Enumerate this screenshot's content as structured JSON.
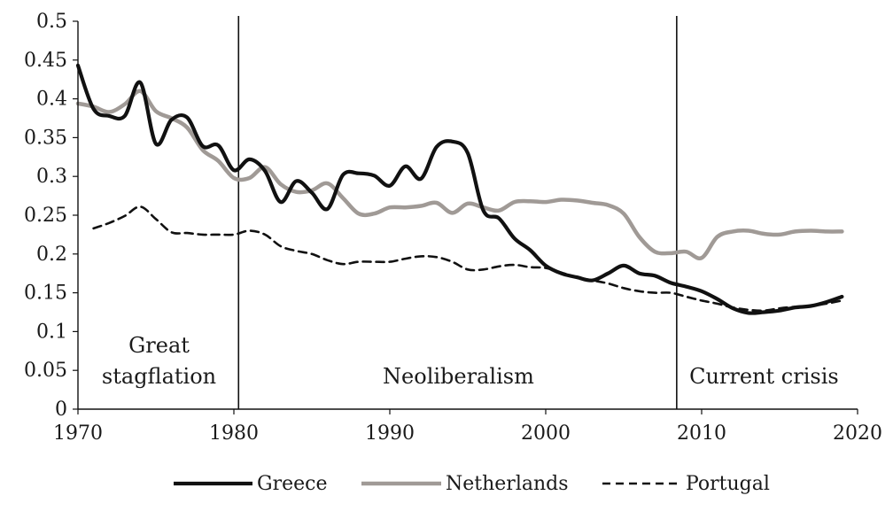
{
  "chart_data": {
    "type": "line",
    "title": "",
    "xlabel": "",
    "ylabel": "",
    "xlim": [
      1970,
      2020
    ],
    "ylim": [
      0,
      0.5
    ],
    "x_ticks": [
      "1970",
      "1980",
      "1990",
      "2000",
      "2010",
      "2020"
    ],
    "y_ticks": [
      "0",
      "0.05",
      "0.1",
      "0.15",
      "0.2",
      "0.25",
      "0.3",
      "0.35",
      "0.4",
      "0.45",
      "0.5"
    ],
    "grid": false,
    "legend_position": "bottom",
    "vlines": [
      1980.3,
      2008.4
    ],
    "periods": [
      {
        "name": "period-great-stagflation",
        "lines": [
          "Great",
          "stagflation"
        ],
        "x": 1975.2
      },
      {
        "name": "period-neoliberalism",
        "lines": [
          "Neoliberalism"
        ],
        "x": 1994.4
      },
      {
        "name": "period-current-crisis",
        "lines": [
          "Current crisis"
        ],
        "x": 2014.0
      }
    ],
    "series": [
      {
        "name": "Greece",
        "style": "solid",
        "color": "#111111",
        "points": [
          [
            1970,
            0.443
          ],
          [
            1971,
            0.387
          ],
          [
            1972,
            0.378
          ],
          [
            1973,
            0.378
          ],
          [
            1974,
            0.421
          ],
          [
            1975,
            0.342
          ],
          [
            1976,
            0.373
          ],
          [
            1977,
            0.376
          ],
          [
            1978,
            0.339
          ],
          [
            1979,
            0.34
          ],
          [
            1980,
            0.308
          ],
          [
            1981,
            0.322
          ],
          [
            1982,
            0.307
          ],
          [
            1983,
            0.267
          ],
          [
            1984,
            0.294
          ],
          [
            1985,
            0.279
          ],
          [
            1986,
            0.258
          ],
          [
            1987,
            0.302
          ],
          [
            1988,
            0.304
          ],
          [
            1989,
            0.301
          ],
          [
            1990,
            0.288
          ],
          [
            1991,
            0.313
          ],
          [
            1992,
            0.297
          ],
          [
            1993,
            0.338
          ],
          [
            1994,
            0.345
          ],
          [
            1995,
            0.33
          ],
          [
            1996,
            0.256
          ],
          [
            1997,
            0.246
          ],
          [
            1998,
            0.22
          ],
          [
            1999,
            0.205
          ],
          [
            2000,
            0.185
          ],
          [
            2001,
            0.175
          ],
          [
            2002,
            0.17
          ],
          [
            2003,
            0.166
          ],
          [
            2004,
            0.175
          ],
          [
            2005,
            0.185
          ],
          [
            2006,
            0.175
          ],
          [
            2007,
            0.172
          ],
          [
            2008,
            0.163
          ],
          [
            2009,
            0.158
          ],
          [
            2010,
            0.152
          ],
          [
            2011,
            0.142
          ],
          [
            2012,
            0.13
          ],
          [
            2013,
            0.124
          ],
          [
            2014,
            0.125
          ],
          [
            2015,
            0.127
          ],
          [
            2016,
            0.131
          ],
          [
            2017,
            0.133
          ],
          [
            2018,
            0.138
          ],
          [
            2019,
            0.145
          ]
        ]
      },
      {
        "name": "Netherlands",
        "style": "solid",
        "color": "#a09a96",
        "points": [
          [
            1970,
            0.394
          ],
          [
            1971,
            0.39
          ],
          [
            1972,
            0.383
          ],
          [
            1973,
            0.393
          ],
          [
            1974,
            0.41
          ],
          [
            1975,
            0.384
          ],
          [
            1976,
            0.375
          ],
          [
            1977,
            0.363
          ],
          [
            1978,
            0.334
          ],
          [
            1979,
            0.32
          ],
          [
            1980,
            0.298
          ],
          [
            1981,
            0.298
          ],
          [
            1982,
            0.312
          ],
          [
            1983,
            0.29
          ],
          [
            1984,
            0.28
          ],
          [
            1985,
            0.282
          ],
          [
            1986,
            0.291
          ],
          [
            1987,
            0.272
          ],
          [
            1988,
            0.252
          ],
          [
            1989,
            0.252
          ],
          [
            1990,
            0.26
          ],
          [
            1991,
            0.26
          ],
          [
            1992,
            0.262
          ],
          [
            1993,
            0.266
          ],
          [
            1994,
            0.253
          ],
          [
            1995,
            0.265
          ],
          [
            1996,
            0.26
          ],
          [
            1997,
            0.256
          ],
          [
            1998,
            0.267
          ],
          [
            1999,
            0.268
          ],
          [
            2000,
            0.267
          ],
          [
            2001,
            0.27
          ],
          [
            2002,
            0.269
          ],
          [
            2003,
            0.266
          ],
          [
            2004,
            0.263
          ],
          [
            2005,
            0.252
          ],
          [
            2006,
            0.222
          ],
          [
            2007,
            0.203
          ],
          [
            2008,
            0.201
          ],
          [
            2009,
            0.203
          ],
          [
            2010,
            0.195
          ],
          [
            2011,
            0.222
          ],
          [
            2012,
            0.229
          ],
          [
            2013,
            0.23
          ],
          [
            2014,
            0.226
          ],
          [
            2015,
            0.225
          ],
          [
            2016,
            0.229
          ],
          [
            2017,
            0.23
          ],
          [
            2018,
            0.229
          ],
          [
            2019,
            0.229
          ]
        ]
      },
      {
        "name": "Portugal",
        "style": "dashed",
        "color": "#111111",
        "points": [
          [
            1971,
            0.233
          ],
          [
            1972,
            0.24
          ],
          [
            1973,
            0.249
          ],
          [
            1974,
            0.261
          ],
          [
            1975,
            0.245
          ],
          [
            1976,
            0.228
          ],
          [
            1977,
            0.227
          ],
          [
            1978,
            0.225
          ],
          [
            1979,
            0.225
          ],
          [
            1980,
            0.225
          ],
          [
            1981,
            0.23
          ],
          [
            1982,
            0.225
          ],
          [
            1983,
            0.21
          ],
          [
            1984,
            0.204
          ],
          [
            1985,
            0.2
          ],
          [
            1986,
            0.192
          ],
          [
            1987,
            0.187
          ],
          [
            1988,
            0.19
          ],
          [
            1989,
            0.19
          ],
          [
            1990,
            0.19
          ],
          [
            1991,
            0.194
          ],
          [
            1992,
            0.197
          ],
          [
            1993,
            0.196
          ],
          [
            1994,
            0.19
          ],
          [
            1995,
            0.18
          ],
          [
            1996,
            0.18
          ],
          [
            1997,
            0.184
          ],
          [
            1998,
            0.186
          ],
          [
            1999,
            0.183
          ],
          [
            2000,
            0.182
          ],
          [
            2001,
            0.176
          ],
          [
            2002,
            0.17
          ],
          [
            2003,
            0.166
          ],
          [
            2004,
            0.162
          ],
          [
            2005,
            0.156
          ],
          [
            2006,
            0.152
          ],
          [
            2007,
            0.15
          ],
          [
            2008,
            0.15
          ],
          [
            2009,
            0.145
          ],
          [
            2010,
            0.14
          ],
          [
            2011,
            0.136
          ],
          [
            2012,
            0.131
          ],
          [
            2013,
            0.128
          ],
          [
            2014,
            0.127
          ],
          [
            2015,
            0.13
          ],
          [
            2016,
            0.132
          ],
          [
            2017,
            0.133
          ],
          [
            2018,
            0.136
          ],
          [
            2019,
            0.14
          ]
        ]
      }
    ]
  }
}
